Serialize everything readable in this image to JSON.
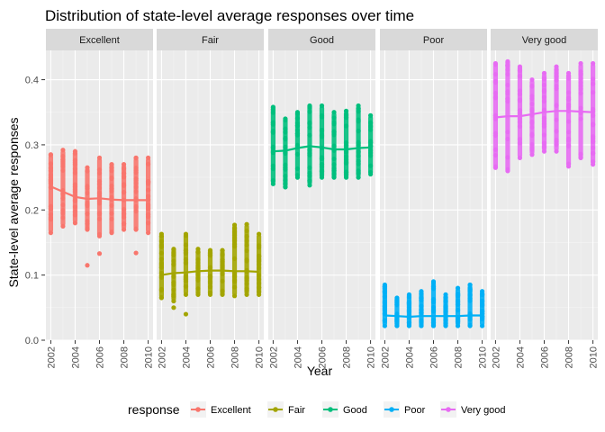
{
  "chart_data": {
    "type": "scatter",
    "title": "Distribution of state-level average responses over time",
    "xlabel": "Year",
    "ylabel": "State-level average responses",
    "xlim": [
      2001.6,
      2010.4
    ],
    "ylim": [
      0.0,
      0.445
    ],
    "x_ticks": [
      2002,
      2004,
      2006,
      2008,
      2010
    ],
    "y_ticks": [
      0.0,
      0.1,
      0.2,
      0.3,
      0.4
    ],
    "grid": true,
    "legend_position": "bottom",
    "legend": {
      "title": "response",
      "entries": [
        "Excellent",
        "Fair",
        "Good",
        "Poor",
        "Very good"
      ]
    },
    "panels": [
      {
        "name": "Excellent",
        "color": "#F8766D",
        "ranges": [
          {
            "year": 2002,
            "min": 0.165,
            "max": 0.285
          },
          {
            "year": 2003,
            "min": 0.175,
            "max": 0.292
          },
          {
            "year": 2004,
            "min": 0.18,
            "max": 0.29
          },
          {
            "year": 2005,
            "min": 0.17,
            "max": 0.265
          },
          {
            "year": 2006,
            "min": 0.16,
            "max": 0.28
          },
          {
            "year": 2007,
            "min": 0.165,
            "max": 0.27
          },
          {
            "year": 2008,
            "min": 0.17,
            "max": 0.27
          },
          {
            "year": 2009,
            "min": 0.17,
            "max": 0.28
          },
          {
            "year": 2010,
            "min": 0.165,
            "max": 0.28
          }
        ],
        "outliers": [
          [
            2005,
            0.115
          ],
          [
            2006,
            0.133
          ],
          [
            2009,
            0.134
          ]
        ],
        "trend": [
          [
            2002,
            0.236
          ],
          [
            2003,
            0.228
          ],
          [
            2004,
            0.22
          ],
          [
            2005,
            0.217
          ],
          [
            2006,
            0.218
          ],
          [
            2007,
            0.216
          ],
          [
            2008,
            0.215
          ],
          [
            2009,
            0.215
          ],
          [
            2010,
            0.215
          ]
        ]
      },
      {
        "name": "Fair",
        "color": "#A3A500",
        "ranges": [
          {
            "year": 2002,
            "min": 0.065,
            "max": 0.163
          },
          {
            "year": 2003,
            "min": 0.06,
            "max": 0.14
          },
          {
            "year": 2004,
            "min": 0.07,
            "max": 0.163
          },
          {
            "year": 2005,
            "min": 0.07,
            "max": 0.14
          },
          {
            "year": 2006,
            "min": 0.07,
            "max": 0.138
          },
          {
            "year": 2007,
            "min": 0.07,
            "max": 0.138
          },
          {
            "year": 2008,
            "min": 0.068,
            "max": 0.177
          },
          {
            "year": 2009,
            "min": 0.07,
            "max": 0.178
          },
          {
            "year": 2010,
            "min": 0.07,
            "max": 0.163
          }
        ],
        "outliers": [
          [
            2003,
            0.05
          ],
          [
            2004,
            0.04
          ]
        ],
        "trend": [
          [
            2002,
            0.1
          ],
          [
            2003,
            0.103
          ],
          [
            2004,
            0.104
          ],
          [
            2005,
            0.106
          ],
          [
            2006,
            0.107
          ],
          [
            2007,
            0.107
          ],
          [
            2008,
            0.106
          ],
          [
            2009,
            0.106
          ],
          [
            2010,
            0.105
          ]
        ]
      },
      {
        "name": "Good",
        "color": "#00BF7D",
        "ranges": [
          {
            "year": 2002,
            "min": 0.24,
            "max": 0.358
          },
          {
            "year": 2003,
            "min": 0.235,
            "max": 0.34
          },
          {
            "year": 2004,
            "min": 0.25,
            "max": 0.35
          },
          {
            "year": 2005,
            "min": 0.238,
            "max": 0.36
          },
          {
            "year": 2006,
            "min": 0.25,
            "max": 0.36
          },
          {
            "year": 2007,
            "min": 0.25,
            "max": 0.35
          },
          {
            "year": 2008,
            "min": 0.25,
            "max": 0.352
          },
          {
            "year": 2009,
            "min": 0.25,
            "max": 0.36
          },
          {
            "year": 2010,
            "min": 0.255,
            "max": 0.345
          }
        ],
        "outliers": [],
        "trend": [
          [
            2002,
            0.29
          ],
          [
            2003,
            0.291
          ],
          [
            2004,
            0.295
          ],
          [
            2005,
            0.298
          ],
          [
            2006,
            0.296
          ],
          [
            2007,
            0.293
          ],
          [
            2008,
            0.293
          ],
          [
            2009,
            0.295
          ],
          [
            2010,
            0.296
          ]
        ]
      },
      {
        "name": "Poor",
        "color": "#00B0F6",
        "ranges": [
          {
            "year": 2002,
            "min": 0.022,
            "max": 0.085
          },
          {
            "year": 2003,
            "min": 0.022,
            "max": 0.065
          },
          {
            "year": 2004,
            "min": 0.022,
            "max": 0.07
          },
          {
            "year": 2005,
            "min": 0.022,
            "max": 0.075
          },
          {
            "year": 2006,
            "min": 0.022,
            "max": 0.09
          },
          {
            "year": 2007,
            "min": 0.022,
            "max": 0.07
          },
          {
            "year": 2008,
            "min": 0.022,
            "max": 0.08
          },
          {
            "year": 2009,
            "min": 0.022,
            "max": 0.085
          },
          {
            "year": 2010,
            "min": 0.022,
            "max": 0.075
          }
        ],
        "outliers": [],
        "trend": [
          [
            2002,
            0.038
          ],
          [
            2003,
            0.037
          ],
          [
            2004,
            0.036
          ],
          [
            2005,
            0.037
          ],
          [
            2006,
            0.037
          ],
          [
            2007,
            0.037
          ],
          [
            2008,
            0.037
          ],
          [
            2009,
            0.038
          ],
          [
            2010,
            0.038
          ]
        ]
      },
      {
        "name": "Very good",
        "color": "#E76BF3",
        "ranges": [
          {
            "year": 2002,
            "min": 0.265,
            "max": 0.425
          },
          {
            "year": 2003,
            "min": 0.26,
            "max": 0.428
          },
          {
            "year": 2004,
            "min": 0.28,
            "max": 0.42
          },
          {
            "year": 2005,
            "min": 0.285,
            "max": 0.4
          },
          {
            "year": 2006,
            "min": 0.29,
            "max": 0.41
          },
          {
            "year": 2007,
            "min": 0.29,
            "max": 0.42
          },
          {
            "year": 2008,
            "min": 0.267,
            "max": 0.41
          },
          {
            "year": 2009,
            "min": 0.28,
            "max": 0.425
          },
          {
            "year": 2010,
            "min": 0.27,
            "max": 0.425
          }
        ],
        "outliers": [],
        "trend": [
          [
            2002,
            0.342
          ],
          [
            2003,
            0.344
          ],
          [
            2004,
            0.344
          ],
          [
            2005,
            0.347
          ],
          [
            2006,
            0.35
          ],
          [
            2007,
            0.352
          ],
          [
            2008,
            0.352
          ],
          [
            2009,
            0.351
          ],
          [
            2010,
            0.35
          ]
        ]
      }
    ]
  }
}
